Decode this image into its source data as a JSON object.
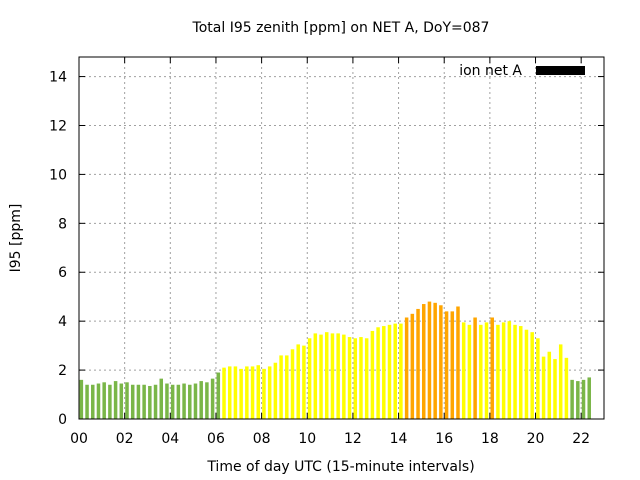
{
  "chart_data": {
    "type": "bar",
    "title": "Total I95 zenith [ppm] on NET A, DoY=087",
    "xlabel": "Time of day UTC (15-minute intervals)",
    "ylabel": "I95 [ppm]",
    "xlim": [
      0,
      23
    ],
    "ylim": [
      0,
      14.8
    ],
    "x_ticks": [
      "00",
      "02",
      "04",
      "06",
      "08",
      "10",
      "12",
      "14",
      "16",
      "18",
      "20",
      "22"
    ],
    "y_ticks": [
      "0",
      "2",
      "4",
      "6",
      "8",
      "10",
      "12",
      "14"
    ],
    "grid": true,
    "legend": {
      "label": "ion net A",
      "placement": "top-right",
      "color": "#000000"
    },
    "colors": {
      "low": "#7ab648",
      "mid": "#ffff00",
      "high": "#ffa500"
    },
    "bin_hours": 0.25,
    "values": [
      1.6,
      1.4,
      1.4,
      1.45,
      1.5,
      1.4,
      1.55,
      1.45,
      1.5,
      1.4,
      1.4,
      1.4,
      1.35,
      1.4,
      1.65,
      1.45,
      1.4,
      1.4,
      1.45,
      1.4,
      1.45,
      1.55,
      1.5,
      1.65,
      1.9,
      2.1,
      2.15,
      2.15,
      2.05,
      2.15,
      2.15,
      2.2,
      2.05,
      2.15,
      2.3,
      2.6,
      2.6,
      2.85,
      3.05,
      3.0,
      3.3,
      3.5,
      3.45,
      3.55,
      3.5,
      3.5,
      3.45,
      3.35,
      3.3,
      3.35,
      3.3,
      3.6,
      3.75,
      3.8,
      3.85,
      3.9,
      3.9,
      4.15,
      4.3,
      4.5,
      4.7,
      4.8,
      4.75,
      4.65,
      4.4,
      4.4,
      4.6,
      3.95,
      3.85,
      4.15,
      3.85,
      3.95,
      4.15,
      3.85,
      3.95,
      4.0,
      3.85,
      3.8,
      3.65,
      3.55,
      3.3,
      2.55,
      2.75,
      2.45,
      3.05,
      2.5,
      1.6,
      1.55,
      1.6,
      1.7
    ],
    "bar_colors": [
      "low",
      "low",
      "low",
      "low",
      "low",
      "low",
      "low",
      "low",
      "low",
      "low",
      "low",
      "low",
      "low",
      "low",
      "low",
      "low",
      "low",
      "low",
      "low",
      "low",
      "low",
      "low",
      "low",
      "low",
      "low",
      "mid",
      "mid",
      "mid",
      "mid",
      "mid",
      "mid",
      "mid",
      "mid",
      "mid",
      "mid",
      "mid",
      "mid",
      "mid",
      "mid",
      "mid",
      "mid",
      "mid",
      "mid",
      "mid",
      "mid",
      "mid",
      "mid",
      "mid",
      "mid",
      "mid",
      "mid",
      "mid",
      "mid",
      "mid",
      "mid",
      "mid",
      "mid",
      "high",
      "high",
      "high",
      "high",
      "high",
      "high",
      "high",
      "high",
      "high",
      "high",
      "mid",
      "mid",
      "high",
      "mid",
      "mid",
      "high",
      "mid",
      "mid",
      "mid",
      "mid",
      "mid",
      "mid",
      "mid",
      "mid",
      "mid",
      "mid",
      "mid",
      "mid",
      "mid",
      "low",
      "low",
      "low",
      "low"
    ]
  }
}
